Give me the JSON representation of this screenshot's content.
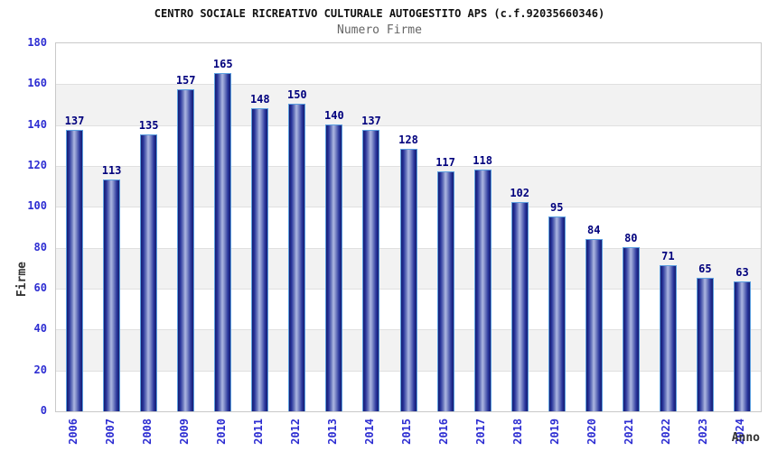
{
  "header": {
    "title": "CENTRO SOCIALE RICREATIVO CULTURALE AUTOGESTITO APS (c.f.92035660346)",
    "subtitle": "Numero Firme"
  },
  "chart_data": {
    "type": "bar",
    "title": "CENTRO SOCIALE RICREATIVO CULTURALE AUTOGESTITO APS (c.f.92035660346)",
    "subtitle": "Numero Firme",
    "xlabel": "Anno",
    "ylabel": "Firme",
    "categories": [
      "2006",
      "2007",
      "2008",
      "2009",
      "2010",
      "2011",
      "2012",
      "2013",
      "2014",
      "2015",
      "2016",
      "2017",
      "2018",
      "2019",
      "2020",
      "2021",
      "2022",
      "2023",
      "2024"
    ],
    "values": [
      137,
      113,
      135,
      157,
      165,
      148,
      150,
      140,
      137,
      128,
      117,
      118,
      102,
      95,
      84,
      80,
      71,
      65,
      63
    ],
    "ylim": [
      0,
      180
    ],
    "ytick_step": 20,
    "grid": true,
    "legend": "none",
    "bands_alternating": true,
    "colors": {
      "bar_edge": "#141c70",
      "bar_center": "#aeb7e2",
      "bar_border": "#5c9fe0",
      "value_label": "#00007d",
      "tick_label": "#2d2dd2",
      "axis_title": "#333333",
      "band_fill": "#f2f2f2",
      "gridline": "#e0e0e0",
      "plot_border": "#c9c9c9",
      "title_color": "#111111",
      "subtitle_color": "#666666"
    }
  }
}
